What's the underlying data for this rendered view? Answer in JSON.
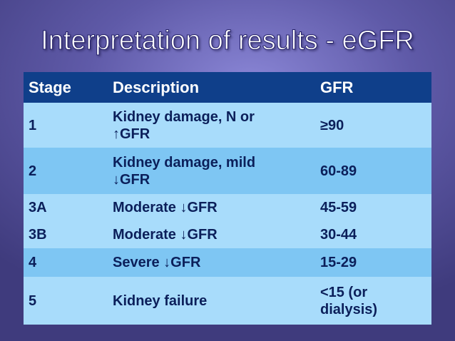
{
  "slide": {
    "title": "Interpretation of results - eGFR"
  },
  "table": {
    "headers": [
      "Stage",
      "Description",
      "GFR"
    ],
    "rows": [
      {
        "stage": "1",
        "description_line1": "Kidney damage, N or",
        "description_line2": "↑GFR",
        "gfr": "≥90"
      },
      {
        "stage": "2",
        "description_line1": "Kidney damage, mild",
        "description_line2": "↓GFR",
        "gfr": "60-89"
      },
      {
        "stage": "3A",
        "description": "Moderate ↓GFR",
        "gfr": "45-59"
      },
      {
        "stage": "3B",
        "description": "Moderate ↓GFR",
        "gfr": "30-44"
      },
      {
        "stage": "4",
        "description": "Severe ↓GFR",
        "gfr": "15-29"
      },
      {
        "stage": "5",
        "description": "Kidney failure",
        "gfr_line1": "<15 (or",
        "gfr_line2": "dialysis)"
      }
    ]
  },
  "colors": {
    "header_bg": "#0f3f8a",
    "row_light": "#a8dcfb",
    "row_mid": "#7ec6f3",
    "text_dark": "#0b1f5a"
  }
}
